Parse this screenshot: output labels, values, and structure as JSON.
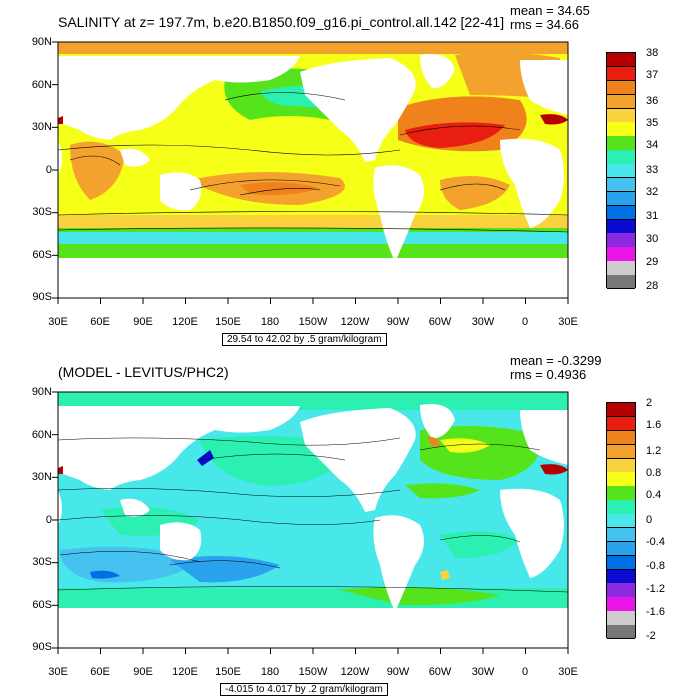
{
  "top": {
    "title": "SALINITY at z= 197.7m, b.e20.B1850.f09_g16.pi_control.all.142 [22-41]",
    "mean": "mean = 34.65",
    "rms": "rms = 34.66",
    "range": "29.54 to 42.02 by .5 gram/kilogram",
    "colorbar": {
      "labels": [
        "38",
        "37",
        "36",
        "35",
        "34",
        "33",
        "32",
        "31",
        "30",
        "29",
        "28"
      ],
      "colors": [
        "#b40000",
        "#e81e10",
        "#f0821c",
        "#f4a22e",
        "#fad23e",
        "#f5ff18",
        "#55e41c",
        "#2cf0b2",
        "#48e8ea",
        "#46c2f0",
        "#2aa2ee",
        "#0070e6",
        "#0a0ad4",
        "#8a2ae0",
        "#ea14ea",
        "#cccccc",
        "#777777"
      ]
    }
  },
  "bottom": {
    "title": "(MODEL - LEVITUS/PHC2)",
    "mean": "mean = -0.3299",
    "rms": "rms = 0.4936",
    "range": "-4.015 to 4.017 by .2 gram/kilogram",
    "colorbar": {
      "labels": [
        "2",
        "1.6",
        "1.2",
        "0.8",
        "0.4",
        "0",
        "-0.4",
        "-0.8",
        "-1.2",
        "-1.6",
        "-2"
      ],
      "colors": [
        "#b40000",
        "#e81e10",
        "#f0821c",
        "#f4a22e",
        "#fad23e",
        "#f5ff18",
        "#55e41c",
        "#2cf0b2",
        "#48e8ea",
        "#46c2f0",
        "#2aa2ee",
        "#0070e6",
        "#0a0ad4",
        "#8a2ae0",
        "#ea14ea",
        "#cccccc",
        "#777777"
      ]
    }
  },
  "axes": {
    "lat_labels": [
      "90N",
      "60N",
      "30N",
      "0",
      "30S",
      "60S",
      "90S"
    ],
    "lon_labels": [
      "30E",
      "60E",
      "90E",
      "120E",
      "150E",
      "180",
      "150W",
      "120W",
      "90W",
      "60W",
      "30W",
      "0",
      "30E"
    ]
  },
  "colors": {
    "land": "#ffffff",
    "frame": "#000000"
  }
}
